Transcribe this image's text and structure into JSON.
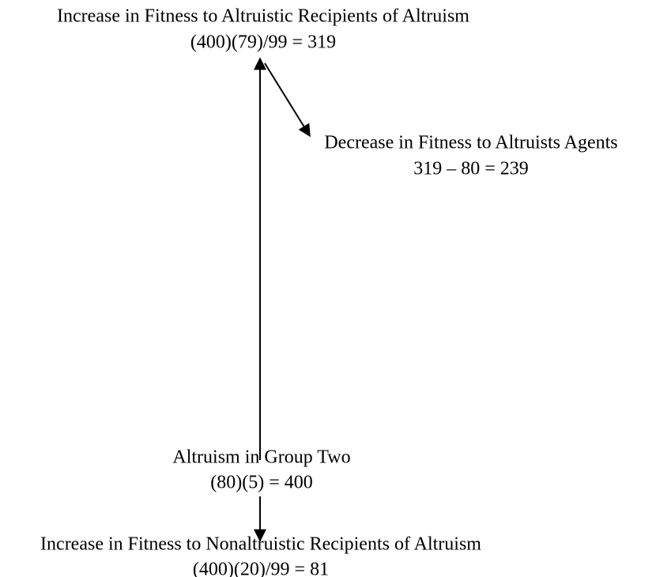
{
  "nodes": [
    {
      "label": "Increase in Fitness to Altruistic Recipients of Altruism",
      "formula": "(400)(79)/99 = 319"
    },
    {
      "label": "Decrease in Fitness to Altruists Agents",
      "formula": "319 – 80 = 239"
    },
    {
      "label": "Altruism in Group Two",
      "formula": "(80)(5) = 400"
    },
    {
      "label": "Increase in Fitness to Nonaltruistic Recipients of Altruism",
      "formula": "(400)(20)/99 = 81"
    }
  ]
}
